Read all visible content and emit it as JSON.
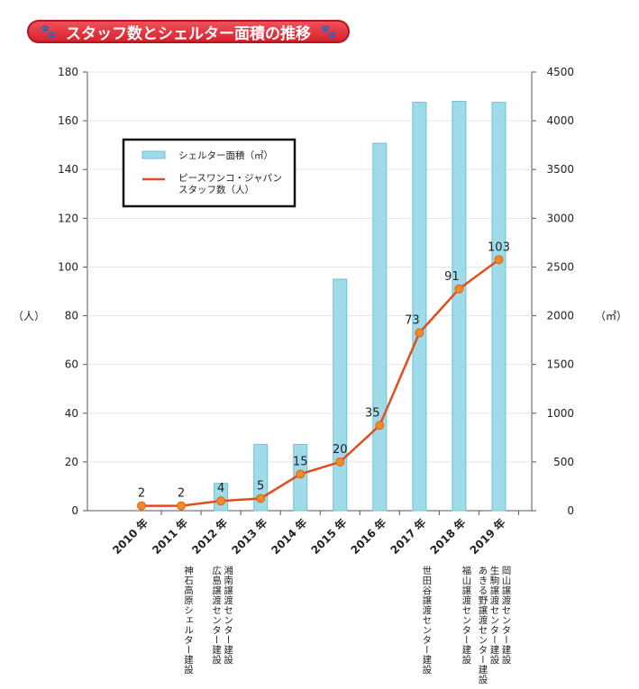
{
  "title": "スタッフ数とシェルター面積の推移",
  "chart_data": {
    "type": "bar+line",
    "title": "スタッフ数とシェルター面積の推移",
    "categories": [
      "2010 年",
      "2011 年",
      "2012 年",
      "2013 年",
      "2014 年",
      "2015 年",
      "2016 年",
      "2017 年",
      "2018 年",
      "2019 年"
    ],
    "series": [
      {
        "name": "シェルター面積（㎡）",
        "type": "bar",
        "axis": "right",
        "color": "#9fdbe9",
        "values": [
          0,
          0,
          280,
          680,
          680,
          2375,
          3770,
          4190,
          4200,
          4190
        ]
      },
      {
        "name": "ピースワンコ・ジャパン スタッフ数（人）",
        "type": "line",
        "axis": "left",
        "color": "#e04e1e",
        "values": [
          2,
          2,
          4,
          5,
          15,
          20,
          35,
          73,
          91,
          103
        ]
      }
    ],
    "ylabel": "（人）",
    "y2label": "（㎡）",
    "ylim": [
      0,
      180
    ],
    "yticks": [
      0,
      20,
      40,
      60,
      80,
      100,
      120,
      140,
      160,
      180
    ],
    "y2lim": [
      0,
      4500
    ],
    "y2ticks": [
      0,
      500,
      1000,
      1500,
      2000,
      2500,
      3000,
      3500,
      4000,
      4500
    ],
    "legend": {
      "position": "top-left",
      "entries": [
        "シェルター面積（㎡）",
        "ピースワンコ・ジャパン",
        "スタッフ数（人）"
      ]
    },
    "annotations": [
      {
        "year": "2011 年",
        "lines": [
          "神石高原シェルター建設"
        ]
      },
      {
        "year": "2012 年",
        "lines": [
          "湘南譲渡センター建設",
          "広島譲渡センター建設"
        ]
      },
      {
        "year": "2017 年",
        "lines": [
          "世田谷譲渡センター建設"
        ]
      },
      {
        "year": "2018 年",
        "lines": [
          "福山譲渡センター建設"
        ]
      },
      {
        "year": "2019 年",
        "lines": [
          "岡山譲渡センター建設",
          "生駒譲渡センター建設",
          "あきる野譲渡センター建設"
        ]
      }
    ]
  }
}
